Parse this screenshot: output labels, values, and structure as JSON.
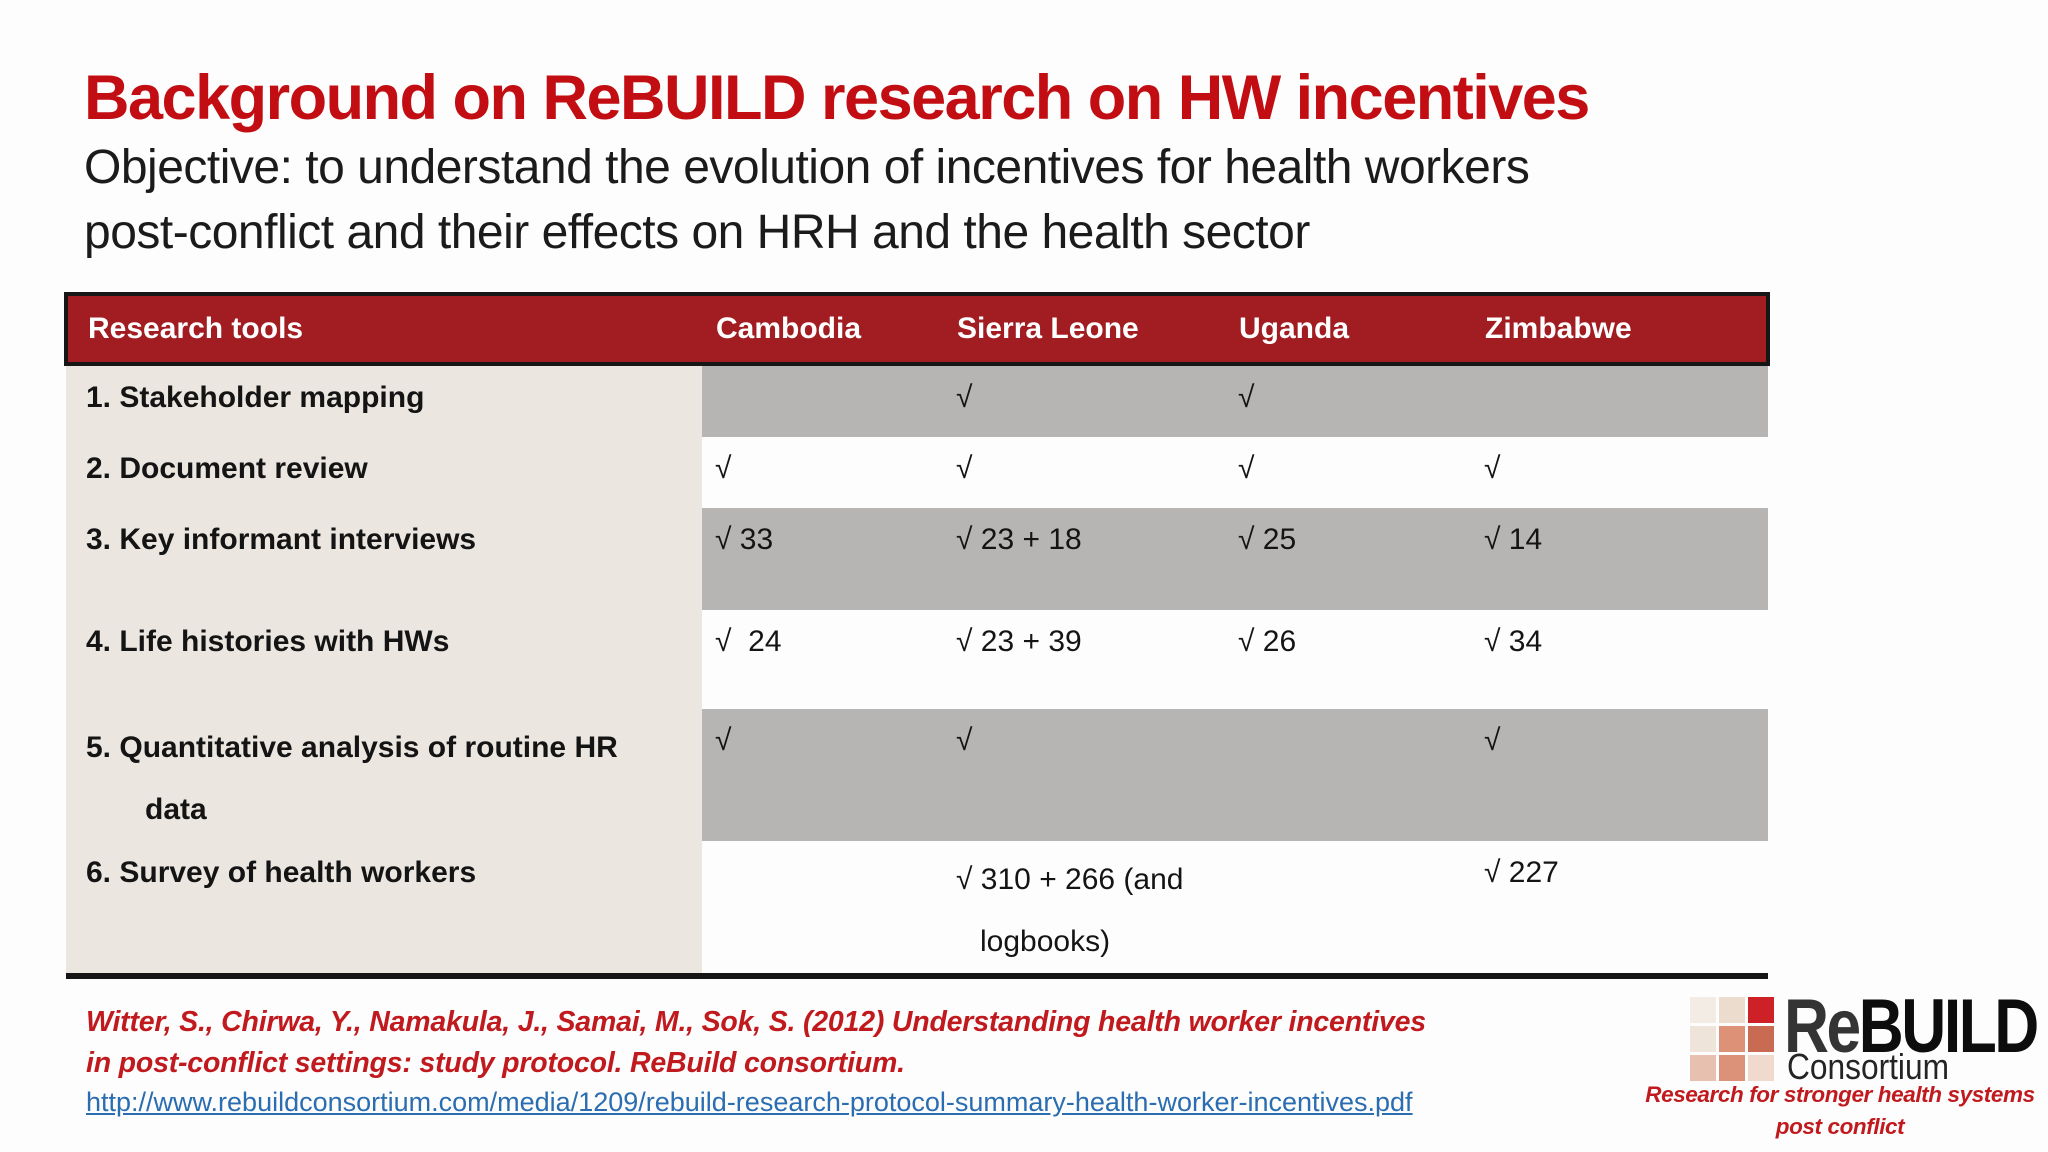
{
  "slide": {
    "title": "Background on ReBUILD research on HW incentives",
    "subtitle": "Objective: to understand the evolution of incentives for health workers\npost-conflict and their effects on HRH and the health sector"
  },
  "table": {
    "columns": [
      "Research tools",
      "Cambodia",
      "Sierra Leone",
      "Uganda",
      "Zimbabwe"
    ],
    "rows": [
      {
        "cells": [
          "1. Stakeholder mapping",
          "",
          "√",
          "√",
          ""
        ]
      },
      {
        "cells": [
          "2. Document review",
          "√",
          "√",
          "√",
          "√"
        ]
      },
      {
        "cells": [
          "3. Key informant interviews",
          "√ 33",
          "√ 23 + 18",
          "√ 25",
          "√ 14"
        ]
      },
      {
        "cells": [
          "4. Life histories with HWs",
          "√  24",
          "√ 23 + 39",
          "√ 26",
          "√ 34"
        ]
      },
      {
        "cells": [
          "5. Quantitative analysis of routine HR\ndata",
          "√",
          "√",
          "",
          "√"
        ]
      },
      {
        "cells": [
          "6. Survey of health workers",
          "",
          "√ 310 + 266 (and\nlogbooks)",
          "",
          "√ 227"
        ]
      }
    ]
  },
  "footer": {
    "citation_line1": "Witter, S., Chirwa, Y., Namakula, J., Samai, M., Sok, S. (2012) Understanding health worker incentives",
    "citation_line2": "in post-conflict settings: study protocol. ReBuild consortium.",
    "link": "http://www.rebuildconsortium.com/media/1209/rebuild-research-protocol-summary-health-worker-incentives.pdf"
  },
  "logo": {
    "brand_re": "Re",
    "brand_build": "BUILD",
    "brand_sub": "Consortium",
    "tagline_line1": "Research for stronger health systems",
    "tagline_line2": "post conflict"
  },
  "colors": {
    "title_red": "#c20d12",
    "header_red": "#a11d22",
    "row_gray": "#b7b4b4",
    "label_beige": "#ebe7e0",
    "citation_red": "#c11a1e",
    "link_blue": "#2a6db0",
    "logo_red": "#cd2127"
  }
}
